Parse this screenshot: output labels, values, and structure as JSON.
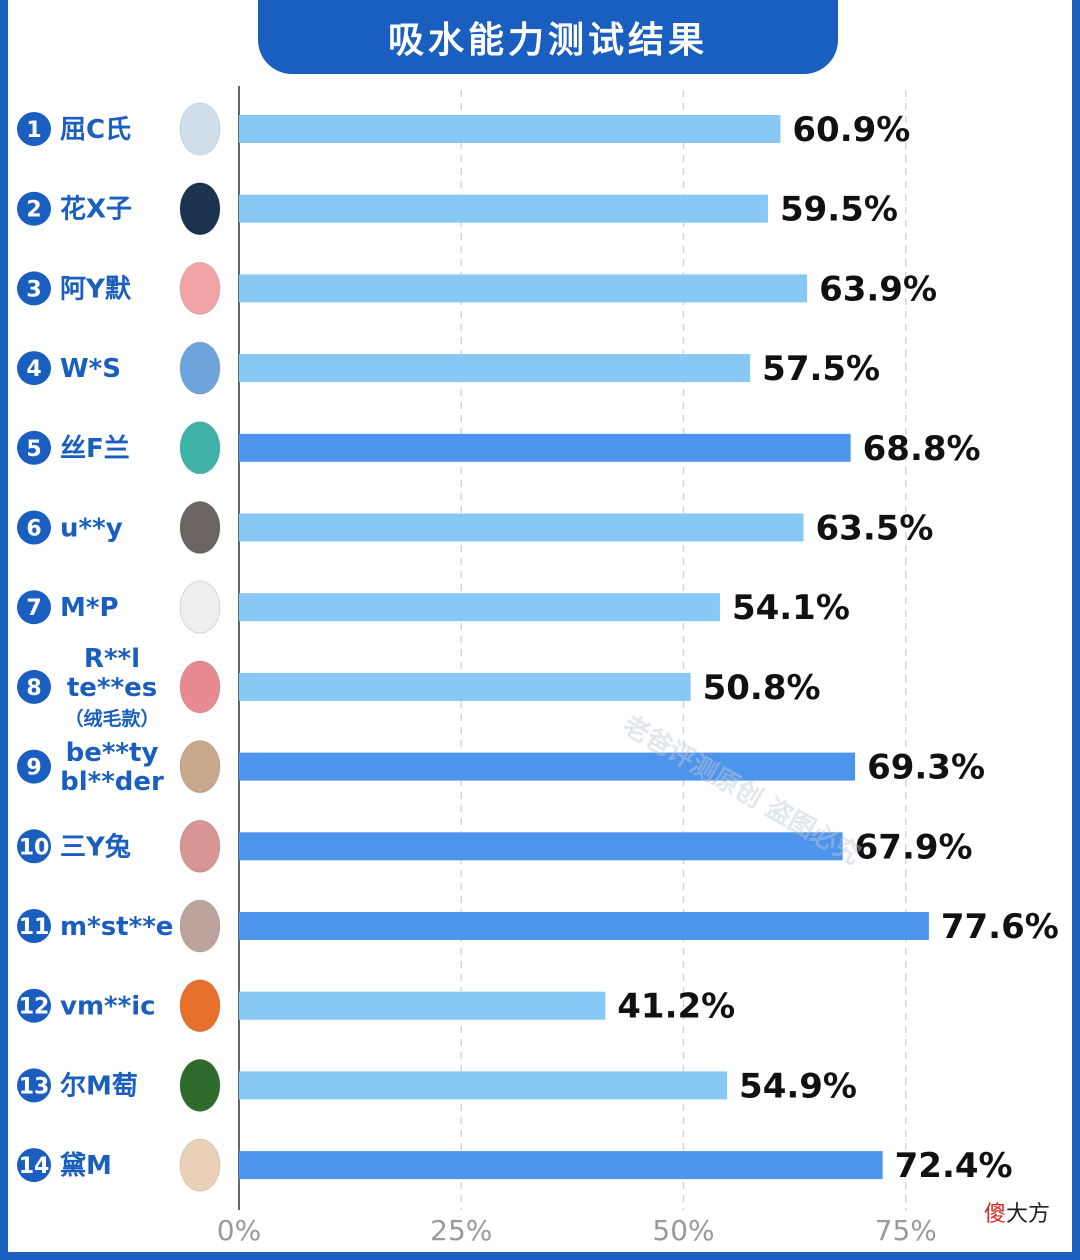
{
  "title": "吸水能力测试结果",
  "watermark": "老爸评测原创 盗图必究",
  "credit": {
    "accent": "傻",
    "rest": "大方"
  },
  "colors": {
    "bar_light": "#87c8f4",
    "bar_dark": "#4d94ec",
    "brand": "#1a5fbf"
  },
  "chart_data": {
    "type": "bar",
    "orientation": "horizontal",
    "unit": "%",
    "xlim": [
      0,
      100
    ],
    "ticks": [
      0,
      25,
      50,
      75
    ],
    "tick_labels": [
      "0%",
      "25%",
      "50%",
      "75%"
    ],
    "grid": "vertical dashed",
    "rows": [
      {
        "rank": "1",
        "name_lines": [
          "屈C氏"
        ],
        "value": 60.9,
        "label": "60.9%",
        "highlight": false,
        "icon": "round-sponge-icon"
      },
      {
        "rank": "2",
        "name_lines": [
          "花X子"
        ],
        "value": 59.5,
        "label": "59.5%",
        "highlight": false,
        "icon": "navy-sponge-on-stand-icon"
      },
      {
        "rank": "3",
        "name_lines": [
          "阿Y默"
        ],
        "value": 63.9,
        "label": "63.9%",
        "highlight": false,
        "icon": "pink-sponge-on-stand-icon"
      },
      {
        "rank": "4",
        "name_lines": [
          "W*S"
        ],
        "value": 57.5,
        "label": "57.5%",
        "highlight": false,
        "icon": "blue-drop-sponge-icon"
      },
      {
        "rank": "5",
        "name_lines": [
          "丝F兰"
        ],
        "value": 68.8,
        "label": "68.8%",
        "highlight": true,
        "icon": "teal-gourd-sponge-icon"
      },
      {
        "rank": "6",
        "name_lines": [
          "u**y"
        ],
        "value": 63.5,
        "label": "63.5%",
        "highlight": false,
        "icon": "gray-drop-sponge-icon"
      },
      {
        "rank": "7",
        "name_lines": [
          "M*P"
        ],
        "value": 54.1,
        "label": "54.1%",
        "highlight": false,
        "icon": "white-wedge-sponge-icon"
      },
      {
        "rank": "8",
        "name_lines": [
          "R**l",
          "te**es",
          "（绒毛款）"
        ],
        "value": 50.8,
        "label": "50.8%",
        "highlight": false,
        "icon": "pink-cut-sponge-icon"
      },
      {
        "rank": "9",
        "name_lines": [
          "be**ty",
          "bl**der"
        ],
        "value": 69.3,
        "label": "69.3%",
        "highlight": true,
        "icon": "beige-drop-sponge-icon"
      },
      {
        "rank": "10",
        "name_lines": [
          "三Y兔"
        ],
        "value": 67.9,
        "label": "67.9%",
        "highlight": true,
        "icon": "rose-drop-sponge-icon"
      },
      {
        "rank": "11",
        "name_lines": [
          "m*st**e"
        ],
        "value": 77.6,
        "label": "77.6%",
        "highlight": true,
        "icon": "mauve-drop-sponge-icon"
      },
      {
        "rank": "12",
        "name_lines": [
          "vm**ic"
        ],
        "value": 41.2,
        "label": "41.2%",
        "highlight": false,
        "icon": "orange-cut-sponge-icon"
      },
      {
        "rank": "13",
        "name_lines": [
          "尔M萄"
        ],
        "value": 54.9,
        "label": "54.9%",
        "highlight": false,
        "icon": "green-sponge-on-stand-icon"
      },
      {
        "rank": "14",
        "name_lines": [
          "黛M"
        ],
        "value": 72.4,
        "label": "72.4%",
        "highlight": true,
        "icon": "nude-cut-sponge-icon"
      }
    ]
  }
}
